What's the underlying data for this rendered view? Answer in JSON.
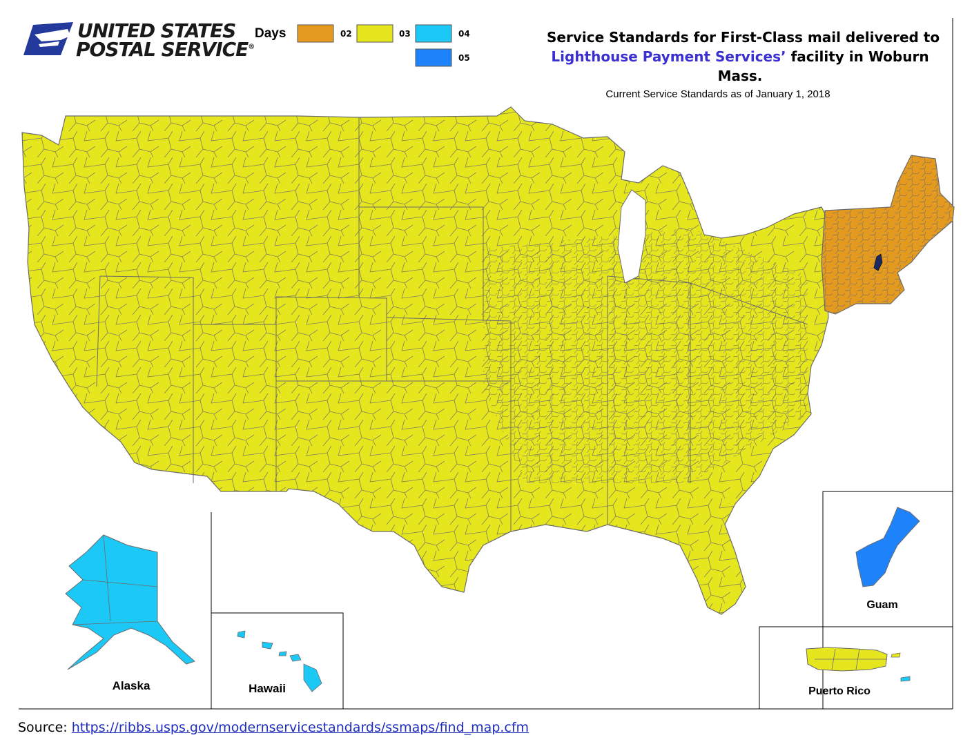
{
  "logo": {
    "line1": "UNITED STATES",
    "line2": "POSTAL SERVICE",
    "registered_mark": "®",
    "eagle_icon": "usps-eagle-icon"
  },
  "legend": {
    "title": "Days",
    "items": [
      {
        "label": "02",
        "color": "#E49A1E"
      },
      {
        "label": "03",
        "color": "#E6E61E"
      },
      {
        "label": "04",
        "color": "#1CC8F5"
      },
      {
        "label": "05",
        "color": "#1E82FA"
      }
    ]
  },
  "title": {
    "line1": "Service Standards for First-Class mail delivered to",
    "line2_highlight": "Lighthouse Payment Services’",
    "line2_rest": " facility in Woburn",
    "line3": "Mass.",
    "highlight_color": "#3a2fd0"
  },
  "subtitle": "Current Service Standards as of January 1, 2018",
  "map": {
    "regions": [
      {
        "name": "Contiguous US",
        "days": "03",
        "color": "#E6E61E"
      },
      {
        "name": "New England / Eastern NY",
        "days": "02",
        "color": "#E49A1E"
      },
      {
        "name": "Woburn facility",
        "color": "#1b2a5e"
      }
    ],
    "border_color": "#6b6b6b"
  },
  "insets": [
    {
      "label": "Alaska",
      "days": "04",
      "color": "#1CC8F5"
    },
    {
      "label": "Hawaii",
      "days": "04",
      "color": "#1CC8F5"
    },
    {
      "label": "Guam",
      "days": "05",
      "color": "#1E82FA"
    },
    {
      "label": "Puerto Rico",
      "days": "03",
      "color": "#E6E61E"
    }
  ],
  "source": {
    "prefix": "Source:",
    "link": "https://ribbs.usps.gov/modernservicestandards/ssmaps/find_map.cfm"
  }
}
